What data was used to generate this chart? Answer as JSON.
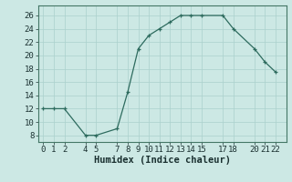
{
  "x": [
    0,
    1,
    2,
    4,
    5,
    7,
    8,
    9,
    10,
    11,
    12,
    13,
    14,
    15,
    17,
    18,
    20,
    21,
    22
  ],
  "y": [
    12,
    12,
    12,
    8,
    8,
    9,
    14.5,
    21,
    23,
    24,
    25,
    26,
    26,
    26,
    26,
    24,
    21,
    19,
    17.5
  ],
  "xlabel": "Humidex (Indice chaleur)",
  "xlim": [
    -0.5,
    23.0
  ],
  "ylim": [
    7,
    27.5
  ],
  "yticks": [
    8,
    10,
    12,
    14,
    16,
    18,
    20,
    22,
    24,
    26
  ],
  "xticks": [
    0,
    1,
    2,
    4,
    5,
    7,
    8,
    9,
    10,
    11,
    12,
    13,
    14,
    15,
    17,
    18,
    20,
    21,
    22
  ],
  "line_color": "#2d6b5e",
  "marker_color": "#2d6b5e",
  "bg_color": "#cce8e4",
  "grid_color": "#aad0cc",
  "xlabel_fontsize": 7.5,
  "tick_fontsize": 6.5
}
